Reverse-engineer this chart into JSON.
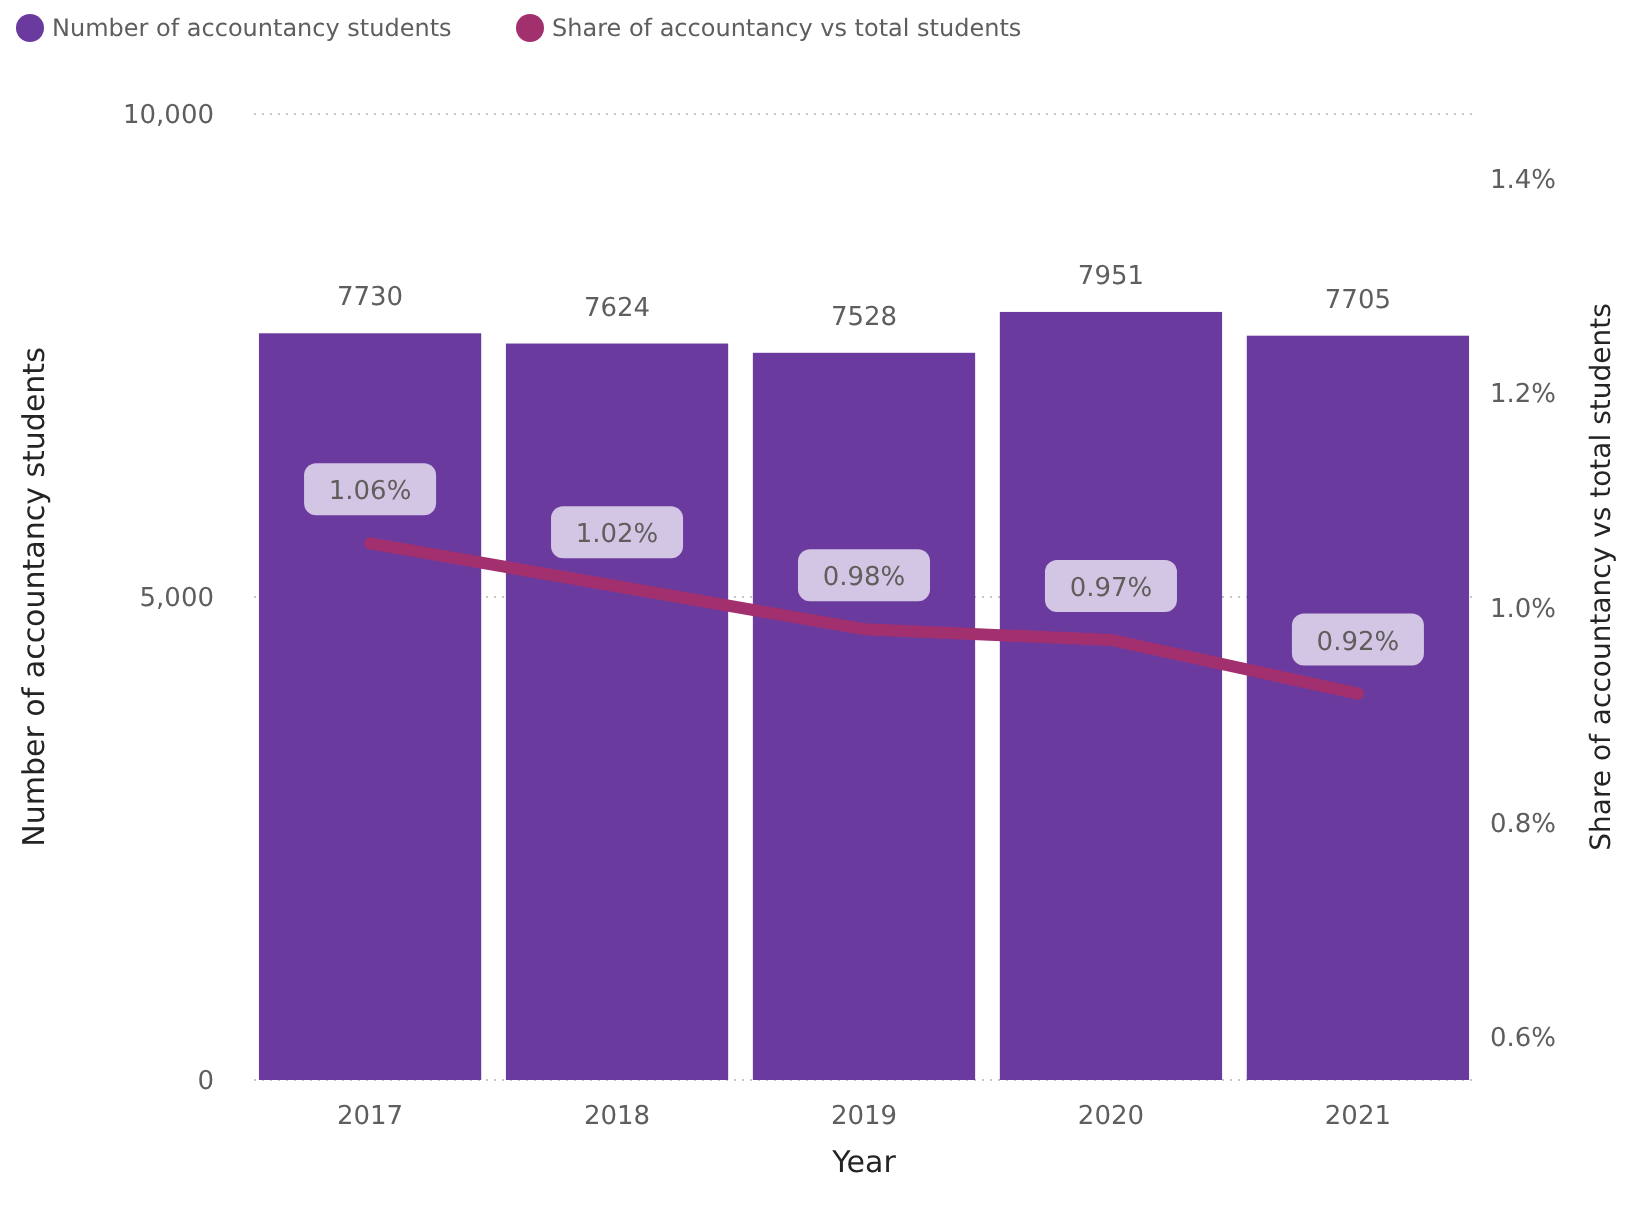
{
  "chart_data": {
    "type": "bar",
    "xlabel": "Year",
    "ylabel": "Number of accountancy students",
    "y2label": "Share of accountancy vs total students",
    "categories": [
      "2017",
      "2018",
      "2019",
      "2020",
      "2021"
    ],
    "series": [
      {
        "name": "Number of accountancy students",
        "color": "#6b3a9e",
        "values": [
          7730,
          7624,
          7528,
          7951,
          7705
        ],
        "value_labels": [
          "7730",
          "7624",
          "7528",
          "7951",
          "7705"
        ]
      },
      {
        "name": "Share of accountancy vs total students",
        "type": "line",
        "axis": "y2",
        "color": "#a3306e",
        "values": [
          1.06,
          1.02,
          0.98,
          0.97,
          0.92
        ],
        "value_labels": [
          "1.06%",
          "1.02%",
          "0.98%",
          "0.97%",
          "0.92%"
        ]
      }
    ],
    "ylim": [
      0,
      10000
    ],
    "yticks": [
      0,
      {
        "value": 5000,
        "label": "5,000"
      },
      {
        "value": 10000,
        "label": "10,000"
      }
    ],
    "y2lim": [
      0.56,
      1.46
    ],
    "y2ticks": [
      {
        "value": 0.6,
        "label": "0.6%"
      },
      {
        "value": 0.8,
        "label": "0.8%"
      },
      {
        "value": 1.0,
        "label": "1.0%"
      },
      {
        "value": 1.2,
        "label": "1.2%"
      },
      {
        "value": 1.4,
        "label": "1.4%"
      }
    ],
    "grid": "y",
    "legend": "top left",
    "marker": "none",
    "line_style": "solid"
  }
}
